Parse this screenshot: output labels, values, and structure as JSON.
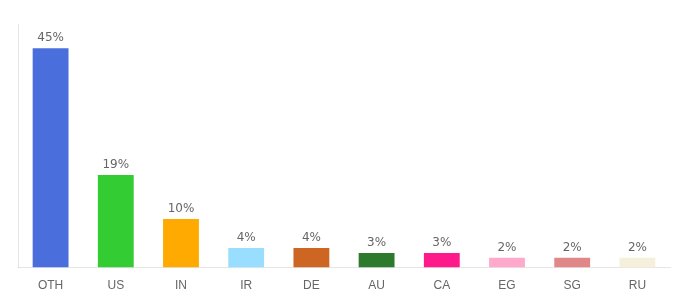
{
  "chart_data": {
    "type": "bar",
    "categories": [
      "OTH",
      "US",
      "IN",
      "IR",
      "DE",
      "AU",
      "CA",
      "EG",
      "SG",
      "RU"
    ],
    "values": [
      45,
      19,
      10,
      4,
      4,
      3,
      3,
      2,
      2,
      2
    ],
    "value_labels": [
      "45%",
      "19%",
      "10%",
      "4%",
      "4%",
      "3%",
      "3%",
      "2%",
      "2%",
      "2%"
    ],
    "colors": [
      "#4a6fdc",
      "#33cc33",
      "#ffaa00",
      "#99ddff",
      "#cc6622",
      "#2d7a2d",
      "#ff1a8c",
      "#ffaacc",
      "#e08888",
      "#f5f0dc"
    ],
    "ylim": [
      0,
      50
    ],
    "data_labels": true,
    "tick_labels": "x",
    "grid": false
  }
}
